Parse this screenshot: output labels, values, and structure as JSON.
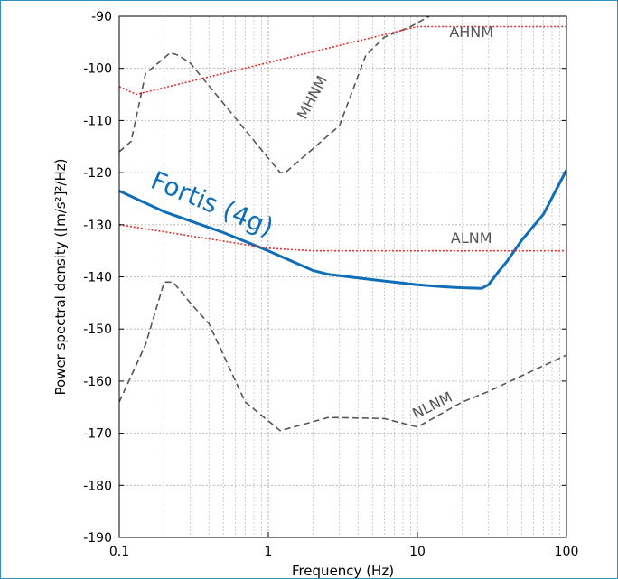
{
  "chart_data": {
    "type": "line",
    "xlabel": "Frequency (Hz)",
    "ylabel": "Power spectral density ([m/s²]²/Hz)",
    "xscale": "log",
    "xlim": [
      0.1,
      100
    ],
    "ylim": [
      -190,
      -90
    ],
    "x_ticks": [
      0.1,
      1,
      10,
      100
    ],
    "x_tick_labels": [
      "0.1",
      "1",
      "10",
      "100"
    ],
    "y_ticks": [
      -90,
      -100,
      -110,
      -120,
      -130,
      -140,
      -150,
      -160,
      -170,
      -180,
      -190
    ],
    "y_tick_labels": [
      "-90",
      "-100",
      "-110",
      "-120",
      "-130",
      "-140",
      "-150",
      "-160",
      "-170",
      "-180",
      "-190"
    ],
    "grid": true,
    "series": [
      {
        "name": "Fortis (4g)",
        "style": "solid",
        "color": "#0e6eb8",
        "x": [
          0.1,
          0.2,
          0.5,
          1,
          2,
          2.5,
          4,
          6,
          10,
          15,
          20,
          27,
          30,
          35,
          40,
          50,
          70,
          100
        ],
        "y": [
          -123.5,
          -127.5,
          -131.5,
          -135,
          -138.8,
          -139.5,
          -140.2,
          -140.8,
          -141.5,
          -141.9,
          -142.1,
          -142.2,
          -141.5,
          -139,
          -137,
          -133,
          -128,
          -119.5
        ]
      },
      {
        "name": "MHNM",
        "style": "dashed",
        "color": "#555555",
        "x": [
          0.1,
          0.12,
          0.15,
          0.2,
          0.22,
          0.25,
          0.3,
          1.2,
          1.3,
          3,
          4.5,
          6,
          9,
          12,
          20,
          30
        ],
        "y": [
          -116,
          -114,
          -101,
          -98,
          -97,
          -97.5,
          -99,
          -120,
          -120,
          -111,
          -97.5,
          -94,
          -92,
          -90,
          -86,
          -84
        ]
      },
      {
        "name": "NLNM",
        "style": "dashed",
        "color": "#555555",
        "x": [
          0.1,
          0.15,
          0.2,
          0.23,
          0.3,
          0.4,
          0.7,
          1.2,
          1.4,
          2.5,
          3,
          6,
          10,
          15,
          20,
          30,
          50,
          100
        ],
        "y": [
          -164,
          -153,
          -141,
          -141,
          -145,
          -149,
          -164,
          -169.5,
          -169,
          -167,
          -167,
          -167.2,
          -168.8,
          -166,
          -164,
          -162,
          -159,
          -155
        ]
      },
      {
        "name": "AHNM",
        "style": "dotted",
        "color": "#e03030",
        "x": [
          0.1,
          0.13,
          10,
          100
        ],
        "y": [
          -103.5,
          -105,
          -92,
          -92
        ]
      },
      {
        "name": "ALNM",
        "style": "dotted",
        "color": "#e03030",
        "x": [
          0.1,
          1,
          2,
          100
        ],
        "y": [
          -130,
          -134.5,
          -135,
          -135
        ]
      }
    ],
    "annotations": [
      "Fortis (4g)",
      "MHNM",
      "NLNM",
      "AHNM",
      "ALNM"
    ]
  }
}
